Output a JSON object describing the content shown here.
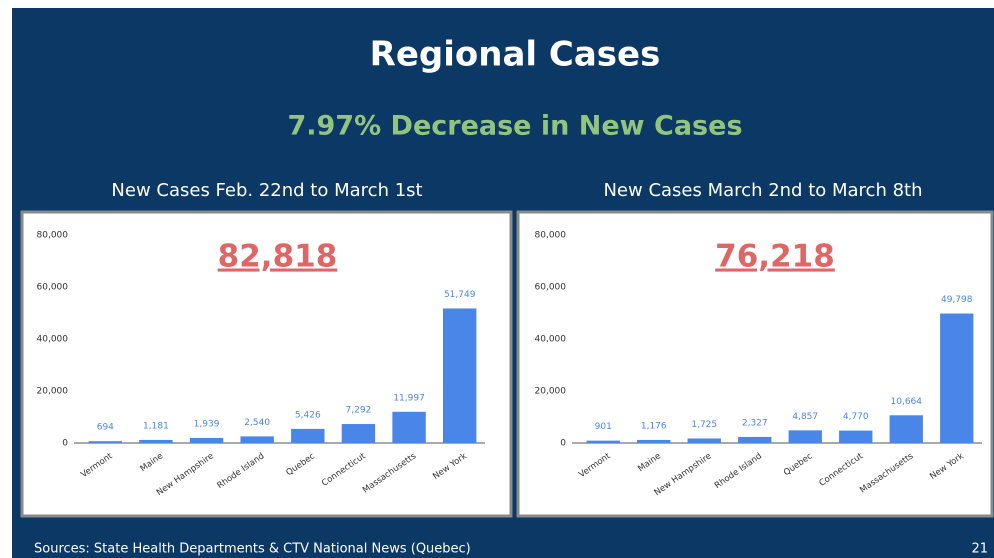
{
  "title": "Regional Cases",
  "subtitle": "7.97% Decrease in New Cases",
  "source": "Sources: State Health Departments & CTV National News (Quebec)",
  "page_number": "21",
  "chart_data": [
    {
      "type": "bar",
      "title": "New Cases Feb. 22nd to March 1st",
      "annotation": "82,818",
      "categories": [
        "Vermont",
        "Maine",
        "New Hampshire",
        "Rhode Island",
        "Quebec",
        "Connecticut",
        "Massachusetts",
        "New York"
      ],
      "values": [
        694,
        1181,
        1939,
        2540,
        5426,
        7292,
        11997,
        51749
      ],
      "value_labels": [
        "694",
        "1,181",
        "1,939",
        "2,540",
        "5,426",
        "7,292",
        "11,997",
        "51,749"
      ],
      "color": "#4a86e8",
      "grid": false,
      "ylim": [
        0,
        80000
      ],
      "yticks": [
        0,
        {
          "value": 20000,
          "label": "20,000"
        },
        {
          "value": 40000,
          "label": "40,000"
        },
        {
          "value": 60000,
          "label": "60,000"
        },
        {
          "value": 80000,
          "label": "80,000"
        }
      ]
    },
    {
      "type": "bar",
      "title": "New Cases March 2nd to March 8th",
      "annotation": "76,218",
      "categories": [
        "Vermont",
        "Maine",
        "New Hampshire",
        "Rhode Island",
        "Quebec",
        "Connecticut",
        "Massachusetts",
        "New York"
      ],
      "values": [
        901,
        1176,
        1725,
        2327,
        4857,
        4770,
        10664,
        49798
      ],
      "value_labels": [
        "901",
        "1,176",
        "1,725",
        "2,327",
        "4,857",
        "4,770",
        "10,664",
        "49,798"
      ],
      "color": "#4a86e8",
      "grid": false,
      "ylim": [
        0,
        80000
      ],
      "yticks": [
        0,
        {
          "value": 20000,
          "label": "20,000"
        },
        {
          "value": 40000,
          "label": "40,000"
        },
        {
          "value": 60000,
          "label": "60,000"
        },
        {
          "value": 80000,
          "label": "80,000"
        }
      ]
    }
  ]
}
